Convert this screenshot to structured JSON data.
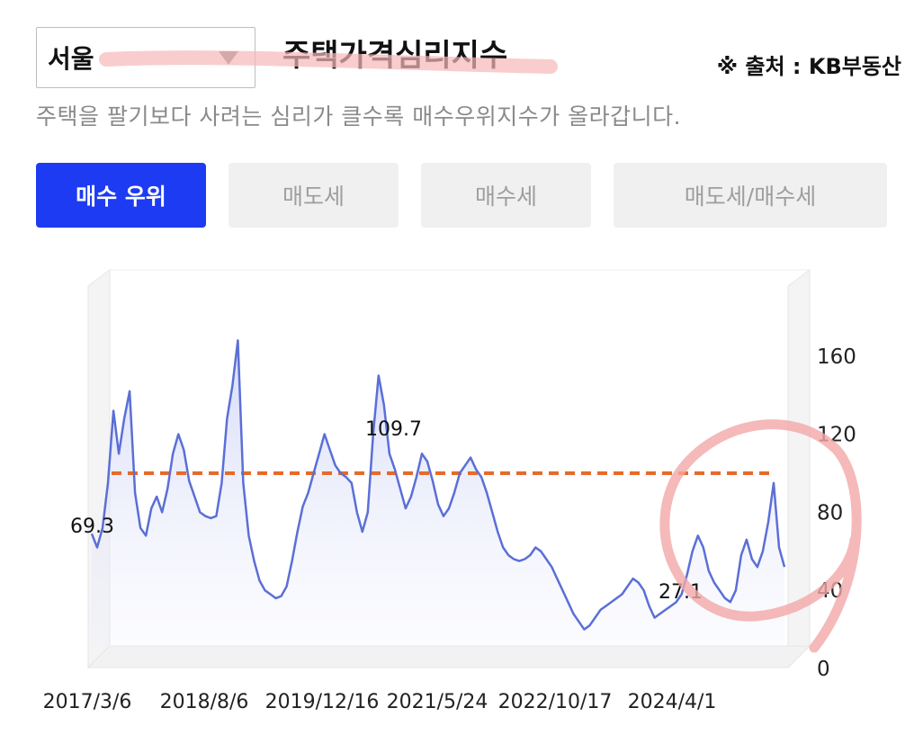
{
  "header": {
    "region_select": "서울",
    "title": "주택가격심리지수",
    "source": "※ 출처 : KB부동산",
    "subtitle": "주택을 팔기보다 사려는 심리가 클수록 매수우위지수가 올라갑니다."
  },
  "tabs": [
    {
      "label": "매수 우위",
      "active": true
    },
    {
      "label": "매도세",
      "active": false
    },
    {
      "label": "매수세",
      "active": false
    },
    {
      "label": "매도세/매수세",
      "active": false
    }
  ],
  "colors": {
    "accent": "#1d3bf2",
    "line": "#5b6fd6",
    "reference": "#e8692a",
    "highlight_circle": "#f2a7a7"
  },
  "chart_data": {
    "type": "area",
    "ylim": [
      0,
      180
    ],
    "y_ticks": [
      0,
      40,
      80,
      120,
      160
    ],
    "x_ticks": [
      "2017/3/6",
      "2018/8/6",
      "2019/12/16",
      "2021/5/24",
      "2022/10/17",
      "2024/4/1"
    ],
    "reference_line": 100,
    "annotations": [
      {
        "label": "69.3",
        "x": "2017/3/6",
        "y": 69.3
      },
      {
        "label": "109.7",
        "x": "2019/12/16",
        "y": 109.7
      },
      {
        "label": "27.1",
        "x": "2024/4/1",
        "y": 27.1
      }
    ],
    "series": [
      {
        "values": [
          69,
          62,
          72,
          95,
          132,
          110,
          128,
          142,
          90,
          72,
          68,
          82,
          88,
          80,
          92,
          110,
          120,
          112,
          96,
          88,
          80,
          78,
          77,
          78,
          95,
          128,
          145,
          168,
          95,
          68,
          55,
          45,
          40,
          38,
          36,
          37,
          42,
          55,
          70,
          83,
          90,
          100,
          110,
          120,
          112,
          104,
          100,
          98,
          95,
          80,
          70,
          80,
          120,
          150,
          135,
          110,
          102,
          92,
          82,
          88,
          98,
          110,
          106,
          96,
          84,
          78,
          82,
          90,
          100,
          104,
          108,
          102,
          98,
          90,
          80,
          70,
          62,
          58,
          56,
          55,
          56,
          58,
          62,
          60,
          56,
          52,
          46,
          40,
          34,
          28,
          24,
          20,
          22,
          26,
          30,
          32,
          34,
          36,
          38,
          42,
          46,
          44,
          40,
          32,
          26,
          28,
          30,
          32,
          34,
          38,
          48,
          60,
          68,
          62,
          50,
          44,
          40,
          36,
          34,
          40,
          58,
          66,
          56,
          52,
          60,
          75,
          95,
          62,
          52
        ]
      }
    ]
  }
}
